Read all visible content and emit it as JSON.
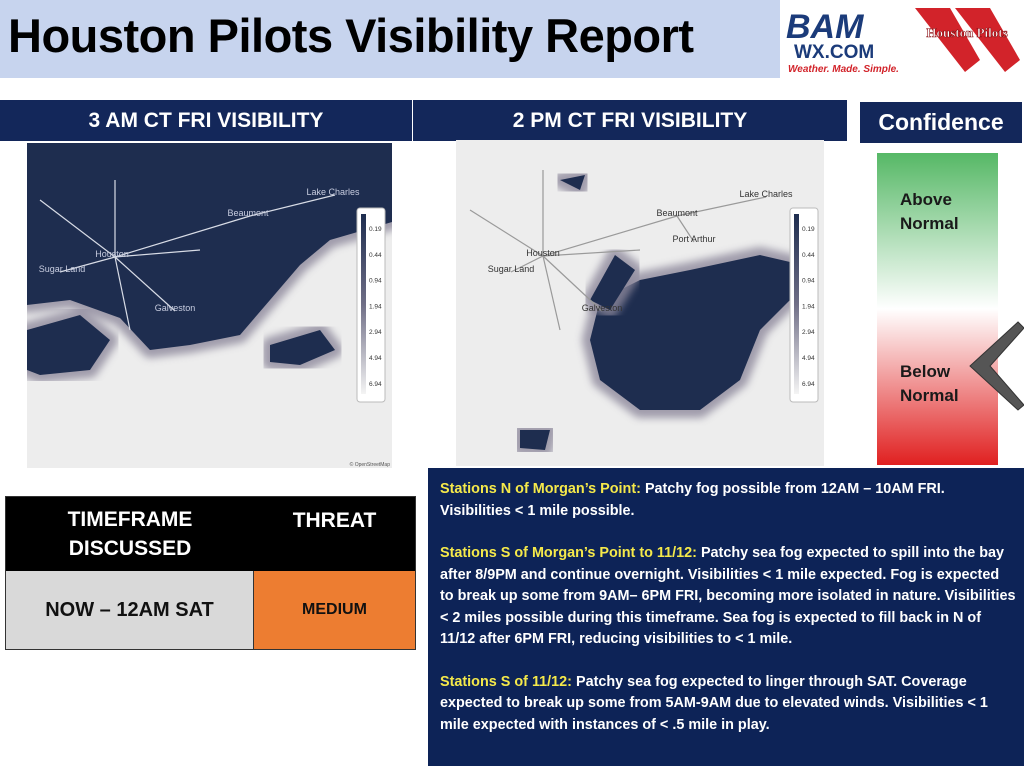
{
  "header": {
    "title": "Houston Pilots Visibility Report",
    "logos": {
      "bam": "BAM",
      "wx": "WX.COM",
      "tagline": "Weather. Made. Simple.",
      "pilots": "Houston Pilots"
    }
  },
  "panels": [
    {
      "title": "3 AM CT FRI VISIBILITY",
      "places": [
        "Lake Charles",
        "Beaumont",
        "Houston",
        "Sugar Land",
        "Galveston"
      ]
    },
    {
      "title": "2 PM CT FRI VISIBILITY",
      "places": [
        "Lake Charles",
        "Beaumont",
        "Port Arthur",
        "Houston",
        "Sugar Land",
        "Galveston"
      ]
    }
  ],
  "legend": [
    0.19,
    0.44,
    0.94,
    1.94,
    2.94,
    4.94,
    6.94
  ],
  "attribution": "© OpenStreetMap",
  "confidence": {
    "title": "Confidence",
    "above": "Above Normal",
    "below": "Below Normal"
  },
  "table": {
    "headers": [
      "TIMEFRAME DISCUSSED",
      "THREAT"
    ],
    "rows": [
      [
        "NOW – 12AM SAT",
        "MEDIUM"
      ]
    ]
  },
  "notes": [
    {
      "label": "Stations N of Morgan’s Point:",
      "text": "Patchy fog possible from 12AM – 10AM FRI. Visibilities < 1 mile possible."
    },
    {
      "label": "Stations S of Morgan’s Point to 11/12:",
      "text": "Patchy sea fog expected to spill into the bay after 8/9PM and continue overnight. Visibilities < 1 mile expected. Fog is expected to break up some from 9AM– 6PM FRI, becoming more isolated in nature. Visibilities < 2 miles possible during this timeframe. Sea fog is expected to fill back in N of 11/12 after 6PM FRI, reducing visibilities to < 1 mile."
    },
    {
      "label": "Stations S of 11/12:",
      "text": "Patchy sea fog expected to linger through SAT. Coverage expected to break up some from 5AM-9AM due to elevated winds. Visibilities < 1 mile expected with instances of < .5 mile in play."
    }
  ]
}
